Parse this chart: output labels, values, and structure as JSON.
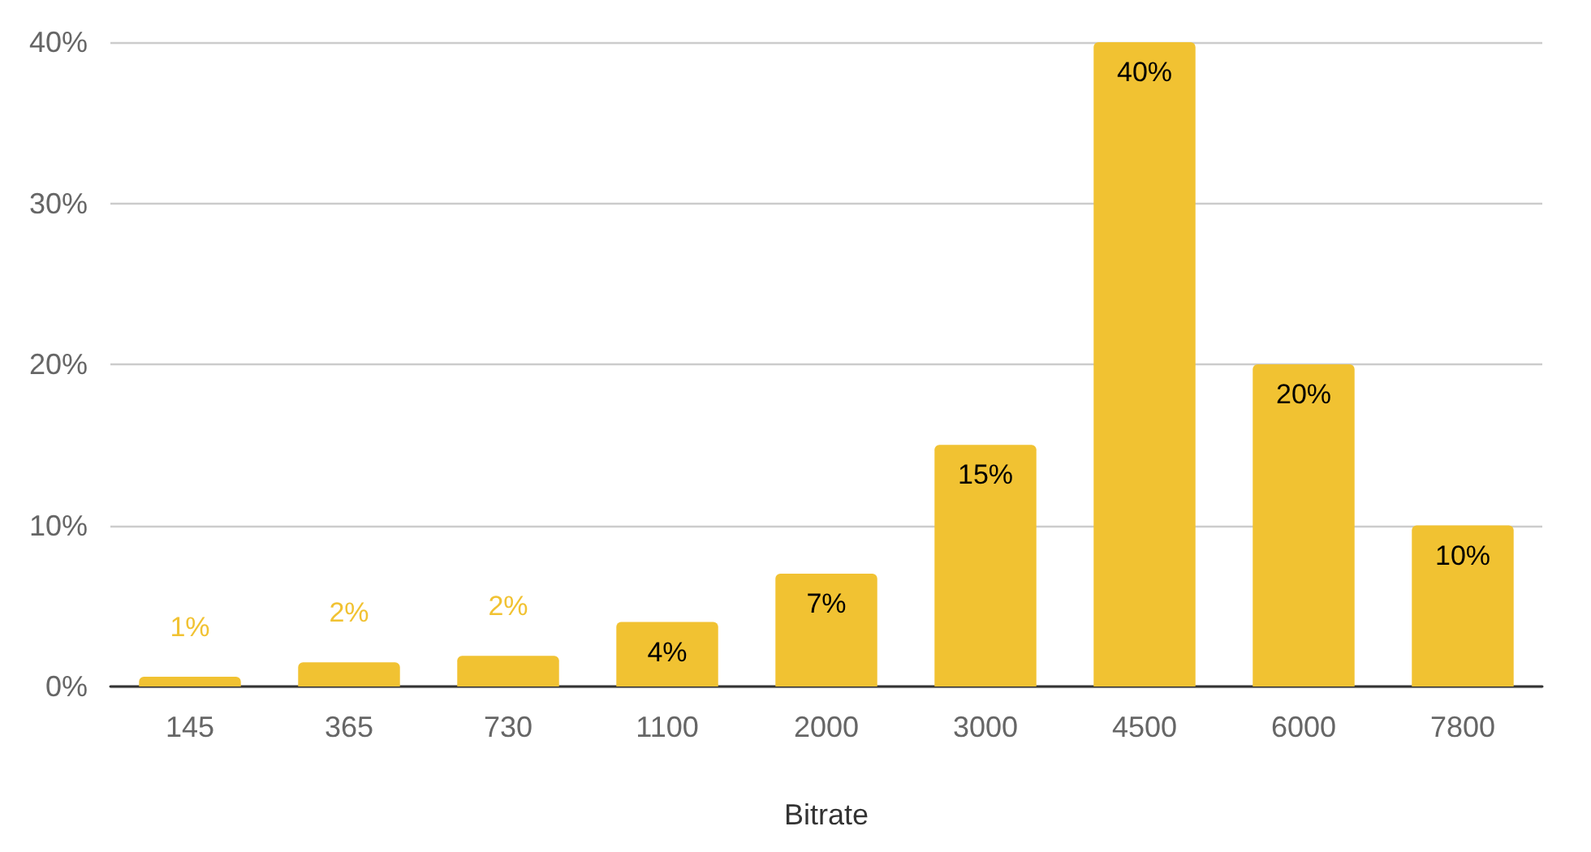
{
  "chart_data": {
    "type": "bar",
    "xlabel": "Bitrate",
    "categories": [
      "145",
      "365",
      "730",
      "1100",
      "2000",
      "3000",
      "4500",
      "6000",
      "7800"
    ],
    "values": [
      0.6,
      1.5,
      1.9,
      4,
      7,
      15,
      40,
      20,
      10
    ],
    "value_labels": [
      "1%",
      "2%",
      "2%",
      "4%",
      "7%",
      "15%",
      "40%",
      "20%",
      "10%"
    ],
    "color": "#f1c232",
    "ylim": [
      0,
      40
    ],
    "yticks": [
      {
        "value": 0,
        "label": "0%"
      },
      {
        "value": 10,
        "label": "10%"
      },
      {
        "value": 20,
        "label": "20%"
      },
      {
        "value": 30,
        "label": "30%"
      },
      {
        "value": 40,
        "label": "40%"
      }
    ],
    "grid": "y"
  }
}
